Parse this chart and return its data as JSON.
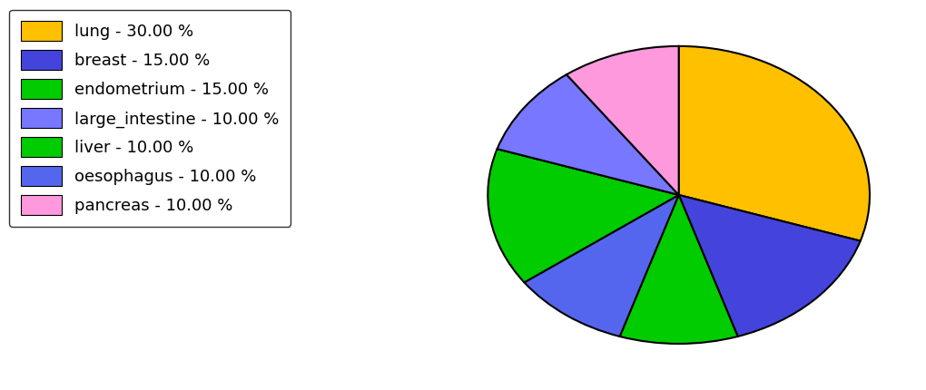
{
  "legend_labels": [
    "lung - 30.00 %",
    "breast - 15.00 %",
    "endometrium - 15.00 %",
    "large_intestine - 10.00 %",
    "liver - 10.00 %",
    "oesophagus - 10.00 %",
    "pancreas - 10.00 %"
  ],
  "legend_colors": [
    "#FFC000",
    "#4444DD",
    "#00CC00",
    "#7777FF",
    "#00CC00",
    "#5566EE",
    "#FF99DD"
  ],
  "plot_values": [
    30,
    15,
    10,
    10,
    15,
    10,
    10
  ],
  "plot_colors": [
    "#FFC000",
    "#4444DD",
    "#00CC00",
    "#5566EE",
    "#00CC00",
    "#7777FF",
    "#FF99DD"
  ],
  "plot_labels": [
    "lung",
    "breast",
    "liver",
    "oesophagus",
    "endometrium",
    "large_intestine",
    "pancreas"
  ],
  "startangle": 90,
  "aspect_ratio": 0.78,
  "background_color": "#ffffff"
}
